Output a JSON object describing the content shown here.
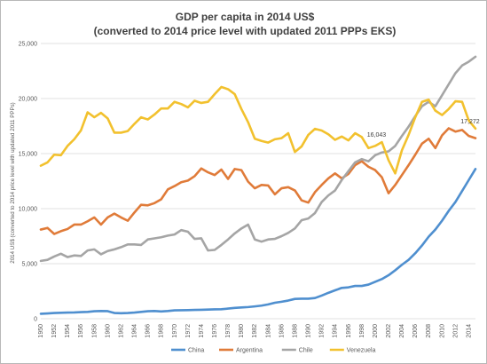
{
  "chart_data": {
    "type": "line",
    "title": "GDP per capita in 2014 US$",
    "subtitle": "(converted to 2014 price level with updated 2011 PPPs EKS)",
    "xlabel": "",
    "ylabel": "2014 US$ (converted to 2014 price level with updated 2011 PPPs)",
    "ylim": [
      0,
      25000
    ],
    "yticks": [
      0,
      5000,
      10000,
      15000,
      20000,
      25000
    ],
    "ytick_labels": [
      "0",
      "5,000",
      "10,000",
      "15,000",
      "20,000",
      "25,000"
    ],
    "xlim": [
      1950,
      2015
    ],
    "xticks": [
      1950,
      1952,
      1954,
      1956,
      1958,
      1960,
      1962,
      1964,
      1966,
      1968,
      1970,
      1972,
      1974,
      1976,
      1978,
      1980,
      1982,
      1984,
      1986,
      1988,
      1990,
      1992,
      1994,
      1996,
      1998,
      2000,
      2002,
      2004,
      2006,
      2008,
      2010,
      2012,
      2014
    ],
    "grid": true,
    "legend_position": "bottom",
    "x": [
      1950,
      1951,
      1952,
      1953,
      1954,
      1955,
      1956,
      1957,
      1958,
      1959,
      1960,
      1961,
      1962,
      1963,
      1964,
      1965,
      1966,
      1967,
      1968,
      1969,
      1970,
      1971,
      1972,
      1973,
      1974,
      1975,
      1976,
      1977,
      1978,
      1979,
      1980,
      1981,
      1982,
      1983,
      1984,
      1985,
      1986,
      1987,
      1988,
      1989,
      1990,
      1991,
      1992,
      1993,
      1994,
      1995,
      1996,
      1997,
      1998,
      1999,
      2000,
      2001,
      2002,
      2003,
      2004,
      2005,
      2006,
      2007,
      2008,
      2009,
      2010,
      2011,
      2012,
      2013,
      2014,
      2015
    ],
    "series": [
      {
        "name": "China",
        "color": "#4f8fcf",
        "values": [
          450,
          480,
          520,
          540,
          560,
          570,
          600,
          620,
          680,
          700,
          690,
          520,
          500,
          520,
          560,
          620,
          680,
          700,
          660,
          700,
          760,
          770,
          780,
          800,
          810,
          830,
          850,
          860,
          920,
          980,
          1020,
          1060,
          1120,
          1190,
          1300,
          1450,
          1540,
          1650,
          1800,
          1820,
          1820,
          1880,
          2100,
          2350,
          2580,
          2800,
          2850,
          2980,
          2980,
          3100,
          3350,
          3600,
          3950,
          4400,
          4900,
          5350,
          5950,
          6650,
          7450,
          8100,
          8900,
          9800,
          10600,
          11600,
          12600,
          13600
        ]
      },
      {
        "name": "Argentina",
        "color": "#e07b39",
        "values": [
          8100,
          8250,
          7700,
          7950,
          8150,
          8550,
          8550,
          8850,
          9200,
          8550,
          9200,
          9550,
          9200,
          8900,
          9650,
          10350,
          10300,
          10500,
          10850,
          11750,
          12050,
          12400,
          12550,
          12950,
          13650,
          13300,
          13050,
          13550,
          12700,
          13600,
          13500,
          12450,
          11850,
          12150,
          12100,
          11300,
          11850,
          11950,
          11650,
          10750,
          10550,
          11500,
          12150,
          12750,
          13200,
          12750,
          13150,
          13950,
          14300,
          13800,
          13500,
          12850,
          11400,
          12150,
          13050,
          13950,
          14900,
          15900,
          16350,
          15500,
          16650,
          17300,
          17000,
          17150,
          16600,
          16400
        ]
      },
      {
        "name": "Chile",
        "color": "#a5a5a5",
        "values": [
          5250,
          5350,
          5650,
          5900,
          5600,
          5750,
          5700,
          6200,
          6300,
          5850,
          6150,
          6300,
          6500,
          6750,
          6750,
          6700,
          7200,
          7300,
          7400,
          7550,
          7650,
          8050,
          7900,
          7250,
          7300,
          6200,
          6250,
          6700,
          7200,
          7750,
          8200,
          8550,
          7200,
          7000,
          7200,
          7250,
          7500,
          7800,
          8200,
          8950,
          9100,
          9600,
          10600,
          11200,
          11650,
          12600,
          13400,
          14200,
          14500,
          14300,
          14850,
          15100,
          15200,
          15700,
          16600,
          17450,
          18400,
          19300,
          19700,
          19300,
          20300,
          21300,
          22300,
          23000,
          23350,
          23800
        ]
      },
      {
        "name": "Venezuela",
        "color": "#f2c12e",
        "values": [
          13900,
          14200,
          14900,
          14850,
          15700,
          16300,
          17100,
          18750,
          18300,
          18700,
          18200,
          16900,
          16900,
          17050,
          17700,
          18300,
          18100,
          18550,
          19100,
          19100,
          19700,
          19500,
          19200,
          19800,
          19600,
          19700,
          20400,
          21050,
          20850,
          20400,
          19050,
          17850,
          16350,
          16150,
          16000,
          16300,
          16400,
          16850,
          15150,
          15650,
          16700,
          17250,
          17100,
          16750,
          16250,
          16550,
          16200,
          16850,
          16500,
          15500,
          15700,
          16043,
          14400,
          13200,
          15300,
          16700,
          18300,
          19700,
          19900,
          18900,
          18500,
          19050,
          19750,
          19700,
          18000,
          17272
        ]
      }
    ],
    "data_labels": [
      {
        "series": "Venezuela",
        "x": 2001,
        "text": "16,043"
      },
      {
        "series": "Venezuela",
        "x": 2015,
        "text": "17,272"
      }
    ]
  }
}
